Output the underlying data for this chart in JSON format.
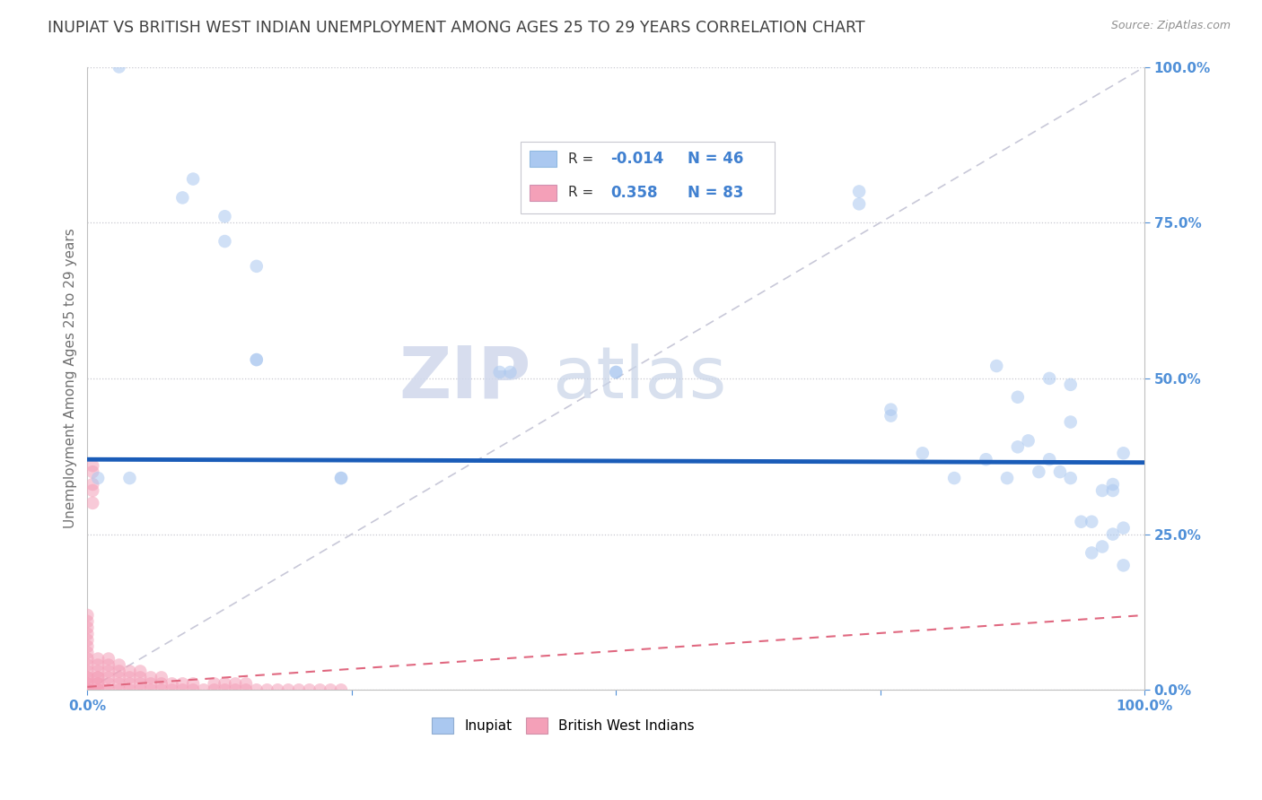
{
  "title": "INUPIAT VS BRITISH WEST INDIAN UNEMPLOYMENT AMONG AGES 25 TO 29 YEARS CORRELATION CHART",
  "source_text": "Source: ZipAtlas.com",
  "ylabel": "Unemployment Among Ages 25 to 29 years",
  "xlim": [
    0,
    1
  ],
  "ylim": [
    0,
    1
  ],
  "xticks": [
    0,
    0.25,
    0.5,
    0.75,
    1.0
  ],
  "yticks": [
    0,
    0.25,
    0.5,
    0.75,
    1.0
  ],
  "xticklabels": [
    "0.0%",
    "",
    "",
    "",
    "100.0%"
  ],
  "yticklabels": [
    "0.0%",
    "25.0%",
    "50.0%",
    "75.0%",
    "100.0%"
  ],
  "inupiat_R": -0.014,
  "inupiat_N": 46,
  "bwi_R": 0.358,
  "bwi_N": 83,
  "inupiat_color": "#aac8f0",
  "bwi_color": "#f4a0b8",
  "inupiat_line_color": "#1a5cb8",
  "bwi_line_color": "#e06880",
  "diag_line_color": "#c8c8d8",
  "title_color": "#404040",
  "tick_label_color": "#5090d8",
  "legend_r_color": "#4080d0",
  "background_color": "#ffffff",
  "watermark_zip": "ZIP",
  "watermark_atlas": "atlas",
  "inupiat_x": [
    0.04,
    0.09,
    0.1,
    0.13,
    0.13,
    0.16,
    0.16,
    0.16,
    0.24,
    0.24,
    0.39,
    0.4,
    0.5,
    0.5,
    0.73,
    0.73,
    0.76,
    0.76,
    0.79,
    0.82,
    0.85,
    0.87,
    0.88,
    0.89,
    0.9,
    0.91,
    0.91,
    0.92,
    0.93,
    0.93,
    0.94,
    0.95,
    0.96,
    0.97,
    0.97,
    0.98,
    0.98,
    0.86,
    0.88,
    0.93,
    0.95,
    0.96,
    0.97,
    0.98,
    0.01,
    0.03
  ],
  "inupiat_y": [
    0.34,
    0.79,
    0.82,
    0.72,
    0.76,
    0.53,
    0.53,
    0.68,
    0.34,
    0.34,
    0.51,
    0.51,
    0.51,
    0.51,
    0.78,
    0.8,
    0.45,
    0.44,
    0.38,
    0.34,
    0.37,
    0.34,
    0.39,
    0.4,
    0.35,
    0.37,
    0.5,
    0.35,
    0.43,
    0.49,
    0.27,
    0.22,
    0.23,
    0.32,
    0.33,
    0.26,
    0.38,
    0.52,
    0.47,
    0.34,
    0.27,
    0.32,
    0.25,
    0.2,
    0.34,
    1.0
  ],
  "bwi_x": [
    0.0,
    0.0,
    0.0,
    0.0,
    0.0,
    0.0,
    0.0,
    0.0,
    0.0,
    0.0,
    0.0,
    0.0,
    0.0,
    0.0,
    0.0,
    0.0,
    0.0,
    0.0,
    0.0,
    0.0,
    0.01,
    0.01,
    0.01,
    0.01,
    0.01,
    0.01,
    0.01,
    0.01,
    0.01,
    0.02,
    0.02,
    0.02,
    0.02,
    0.02,
    0.02,
    0.03,
    0.03,
    0.03,
    0.03,
    0.03,
    0.04,
    0.04,
    0.04,
    0.04,
    0.05,
    0.05,
    0.05,
    0.05,
    0.06,
    0.06,
    0.06,
    0.07,
    0.07,
    0.07,
    0.08,
    0.08,
    0.09,
    0.09,
    0.1,
    0.1,
    0.11,
    0.12,
    0.12,
    0.13,
    0.13,
    0.14,
    0.14,
    0.15,
    0.15,
    0.16,
    0.17,
    0.18,
    0.19,
    0.2,
    0.21,
    0.22,
    0.23,
    0.24,
    0.005,
    0.005,
    0.005,
    0.005,
    0.005
  ],
  "bwi_y": [
    0.0,
    0.0,
    0.0,
    0.0,
    0.0,
    0.0,
    0.01,
    0.01,
    0.02,
    0.02,
    0.03,
    0.04,
    0.05,
    0.06,
    0.07,
    0.08,
    0.09,
    0.1,
    0.11,
    0.12,
    0.0,
    0.0,
    0.01,
    0.01,
    0.02,
    0.02,
    0.03,
    0.04,
    0.05,
    0.0,
    0.01,
    0.02,
    0.03,
    0.04,
    0.05,
    0.0,
    0.01,
    0.02,
    0.03,
    0.04,
    0.0,
    0.01,
    0.02,
    0.03,
    0.0,
    0.01,
    0.02,
    0.03,
    0.0,
    0.01,
    0.02,
    0.0,
    0.01,
    0.02,
    0.0,
    0.01,
    0.0,
    0.01,
    0.0,
    0.01,
    0.0,
    0.0,
    0.01,
    0.0,
    0.01,
    0.0,
    0.01,
    0.0,
    0.01,
    0.0,
    0.0,
    0.0,
    0.0,
    0.0,
    0.0,
    0.0,
    0.0,
    0.0,
    0.3,
    0.32,
    0.33,
    0.35,
    0.36
  ],
  "inupiat_trend_y_start": 0.37,
  "inupiat_trend_y_end": 0.365,
  "marker_size": 110,
  "marker_alpha": 0.55,
  "title_fontsize": 12.5,
  "axis_label_fontsize": 11,
  "tick_fontsize": 11,
  "legend_fontsize": 11
}
